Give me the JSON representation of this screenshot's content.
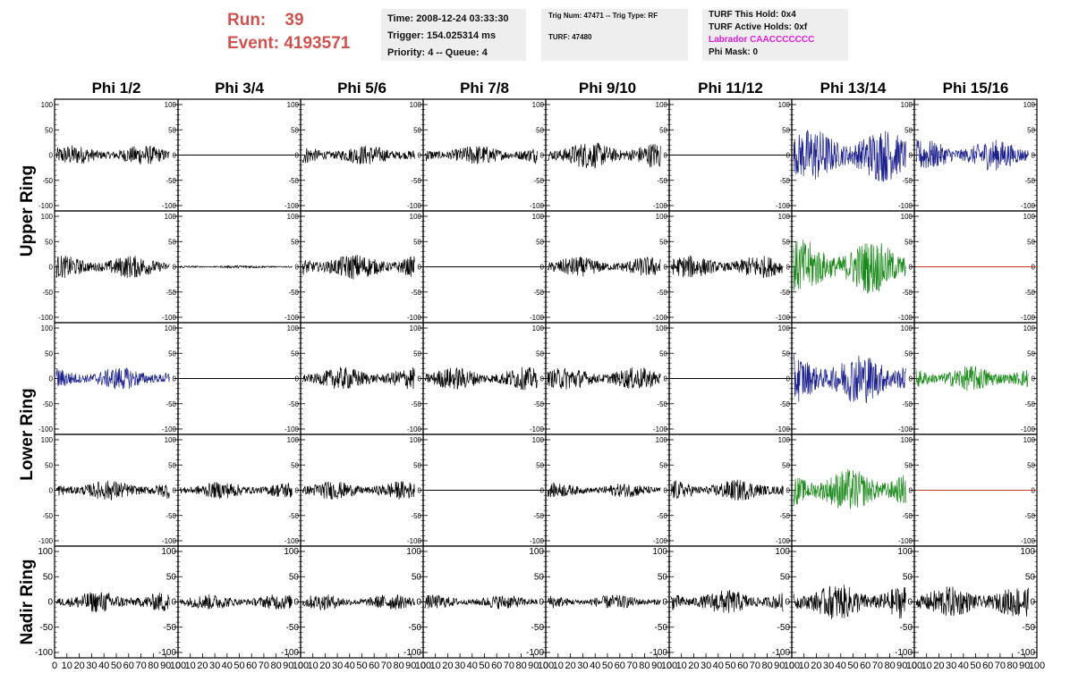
{
  "header": {
    "run_label": "Run:",
    "run_value": "39",
    "event_label": "Event:",
    "event_value": "4193571",
    "time": "Time: 2008-12-24 03:33:30",
    "trigger": "Trigger: 154.025314 ms",
    "priority": "Priority: 4 -- Queue: 4",
    "trig_num": "Trig Num: 47471 -- Trig Type: RF",
    "turf": "TURF: 47480",
    "turf_this_hold": "TURF This Hold: 0x4",
    "turf_active_holds": "TURF Active Holds: 0xf",
    "labrador": "Labrador CAACCCCCCC",
    "phi_mask": "Phi Mask: 0"
  },
  "chart_data": {
    "type": "line",
    "columns": [
      "Phi 1/2",
      "Phi 3/4",
      "Phi 5/6",
      "Phi 7/8",
      "Phi 9/10",
      "Phi 11/12",
      "Phi 13/14",
      "Phi 15/16"
    ],
    "row_groups": [
      "Upper Ring",
      "Lower Ring",
      "Nadir Ring"
    ],
    "ylim": [
      -100,
      100
    ],
    "yticks": [
      -100,
      -50,
      0,
      50,
      100
    ],
    "xlim": [
      0,
      100
    ],
    "xticks": [
      0,
      10,
      20,
      30,
      40,
      50,
      60,
      70,
      80,
      90,
      100
    ],
    "colors": {
      "k": "#000000",
      "b": "#1a1f8c",
      "g": "#1b8a1b",
      "r": "#c0392b"
    },
    "panels": [
      [
        "k:14",
        "f:0",
        "k:14",
        "k:14",
        "k:19",
        "f:0",
        "b:38",
        "b:22"
      ],
      [
        "k:16",
        "k:2",
        "k:18",
        "f:0",
        "k:14",
        "k:16",
        "g:38",
        "r:0"
      ],
      [
        "b:16",
        "f:0",
        "k:16",
        "k:16",
        "k:16",
        "f:0",
        "b:36",
        "g:18"
      ],
      [
        "k:14",
        "k:12",
        "k:13",
        "f:0",
        "k:10",
        "k:15",
        "g:30",
        "r:0"
      ],
      [
        "k:15",
        "k:11",
        "k:11",
        "k:10",
        "k:10",
        "k:17",
        "k:25",
        "k:22"
      ]
    ]
  }
}
